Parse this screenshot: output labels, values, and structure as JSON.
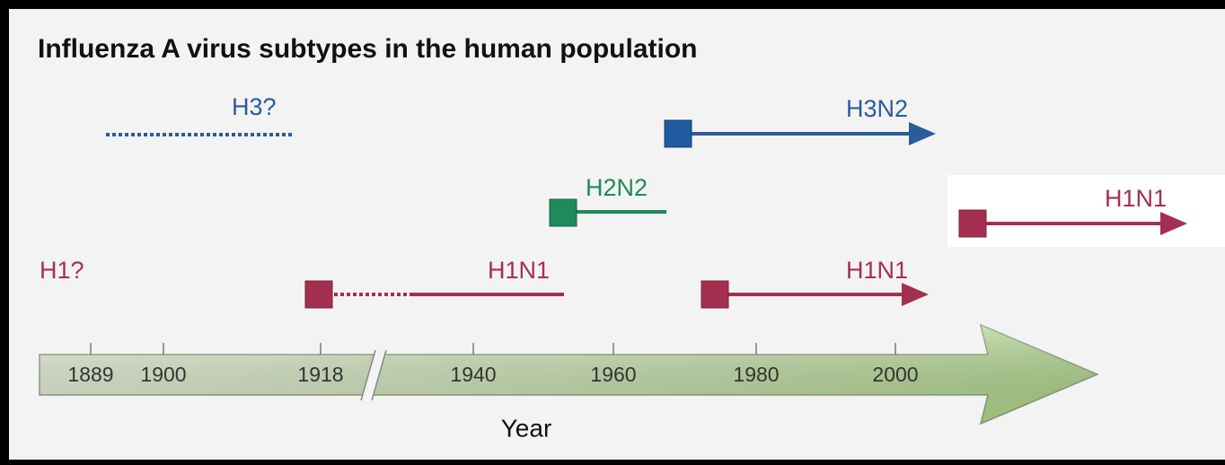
{
  "title": "Influenza A virus subtypes in the human population",
  "axis": {
    "label": "Year",
    "ticks": [
      "1889",
      "1900",
      "1918",
      "1940",
      "1960",
      "1980",
      "2000"
    ]
  },
  "subtypes": [
    {
      "label": "H3?"
    },
    {
      "label": "H3N2"
    },
    {
      "label": "H2N2"
    },
    {
      "label": "H1N1"
    },
    {
      "label": "H1?"
    },
    {
      "label": "H1N1"
    },
    {
      "label": "H1N1"
    }
  ]
}
